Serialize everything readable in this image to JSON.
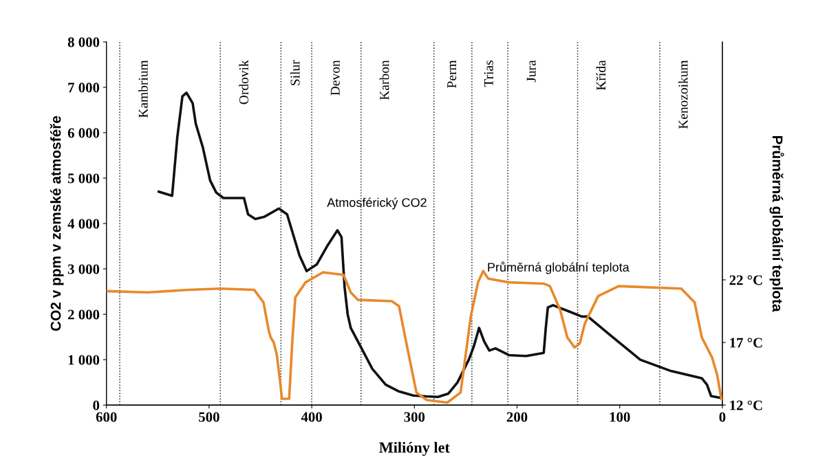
{
  "chart_data": {
    "type": "line",
    "xlabel": "Milióny let",
    "ylabel": "CO2 v ppm v zemské atmosféře",
    "y2label": "Průměrná globální teplota",
    "xlim": [
      600,
      0
    ],
    "xticks": [
      600,
      500,
      400,
      300,
      200,
      100,
      0
    ],
    "ylim": [
      0,
      8000
    ],
    "yticks": [
      {
        "value": 0,
        "label": "0"
      },
      {
        "value": 1000,
        "label": "1 000"
      },
      {
        "value": 2000,
        "label": "2 000"
      },
      {
        "value": 3000,
        "label": "3 000"
      },
      {
        "value": 4000,
        "label": "4 000"
      },
      {
        "value": 5000,
        "label": "5 000"
      },
      {
        "value": 6000,
        "label": "6 000"
      },
      {
        "value": 7000,
        "label": "7 000"
      },
      {
        "value": 8000,
        "label": "8 000"
      }
    ],
    "y2lim": [
      12,
      41
    ],
    "y2ticks": [
      {
        "value": 12,
        "label": "12 °C"
      },
      {
        "value": 17,
        "label": "17 °C"
      },
      {
        "value": 22,
        "label": "22 °C"
      }
    ],
    "grid": false,
    "legend": false,
    "series": [
      {
        "color": "#111111",
        "axis": "y",
        "x": [
          549,
          536,
          531,
          526,
          522,
          516,
          513,
          506,
          499,
          493,
          486,
          476,
          466,
          462,
          455,
          446,
          432,
          424,
          412,
          405,
          395,
          385,
          375,
          371,
          368,
          365,
          362,
          355,
          341,
          328,
          315,
          301,
          288,
          277,
          267,
          258,
          247,
          242,
          237,
          232,
          227,
          221,
          208,
          191,
          174,
          172,
          170,
          165,
          148,
          137,
          131,
          107,
          80,
          50,
          20,
          15,
          11,
          0
        ],
        "values": [
          4700,
          4610,
          5890,
          6800,
          6880,
          6650,
          6200,
          5670,
          4950,
          4680,
          4560,
          4560,
          4560,
          4200,
          4100,
          4150,
          4330,
          4200,
          3300,
          2950,
          3100,
          3500,
          3850,
          3700,
          2600,
          2000,
          1700,
          1400,
          800,
          450,
          300,
          210,
          190,
          180,
          250,
          500,
          1000,
          1300,
          1700,
          1400,
          1200,
          1250,
          1100,
          1080,
          1150,
          1700,
          2150,
          2200,
          2050,
          1950,
          1950,
          1500,
          1000,
          750,
          590,
          450,
          200,
          150
        ]
      },
      {
        "color": "#e8892b",
        "axis": "y2",
        "x": [
          600,
          560,
          520,
          489,
          456,
          447,
          442,
          440,
          437,
          434,
          431,
          429,
          422,
          419,
          416,
          406,
          389,
          369,
          362,
          355,
          322,
          315,
          305,
          298,
          288,
          268,
          255,
          245,
          238,
          233,
          228,
          208,
          174,
          168,
          158,
          151,
          144,
          139,
          134,
          121,
          101,
          40,
          27,
          20,
          10,
          5,
          1
        ],
        "values": [
          21.1,
          21.0,
          21.2,
          21.3,
          21.2,
          20.2,
          18.0,
          17.4,
          17.0,
          16.0,
          14.0,
          12.5,
          12.5,
          17.0,
          20.6,
          21.8,
          22.6,
          22.4,
          21.0,
          20.4,
          20.3,
          19.9,
          15.8,
          13.0,
          12.4,
          12.2,
          13.0,
          19.1,
          21.8,
          22.7,
          22.1,
          21.8,
          21.7,
          21.5,
          19.6,
          17.4,
          16.6,
          16.9,
          18.5,
          20.7,
          21.5,
          21.3,
          20.2,
          17.4,
          15.8,
          14.4,
          12.5
        ]
      }
    ],
    "ref_lines": [
      {
        "axis": "x",
        "value": 587,
        "label": "Kambrium",
        "line_style": "dotted"
      },
      {
        "axis": "x",
        "value": 489,
        "label": "Ordovik",
        "line_style": "dotted"
      },
      {
        "axis": "x",
        "value": 430,
        "label": "Silur",
        "line_style": "dotted"
      },
      {
        "axis": "x",
        "value": 400,
        "label": "Devon",
        "line_style": "dotted"
      },
      {
        "axis": "x",
        "value": 352,
        "label": "Karbon",
        "line_style": "dotted"
      },
      {
        "axis": "x",
        "value": 281,
        "label": "Perm",
        "line_style": "dotted"
      },
      {
        "axis": "x",
        "value": 244,
        "label": "Trias",
        "line_style": "dotted"
      },
      {
        "axis": "x",
        "value": 209,
        "label": "Jura",
        "line_style": "dotted"
      },
      {
        "axis": "x",
        "value": 141,
        "label": "Křída",
        "line_style": "dotted"
      },
      {
        "axis": "x",
        "value": 61,
        "label": "Kenozoikum",
        "line_style": "dotted"
      }
    ],
    "annotations": [
      "Atmosférický CO2",
      "Průměrná globální teplota"
    ]
  }
}
